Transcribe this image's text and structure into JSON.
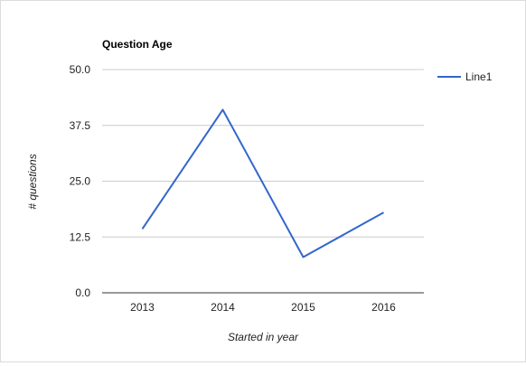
{
  "chart_data": {
    "type": "line",
    "title": "Question Age",
    "xlabel": "Started in year",
    "ylabel": "# questions",
    "categories": [
      "2013",
      "2014",
      "2015",
      "2016"
    ],
    "series": [
      {
        "name": "Line1",
        "values": [
          14.3,
          41,
          8,
          18
        ]
      }
    ],
    "ylim": [
      0,
      50
    ],
    "yticks": [
      "0.0",
      "12.5",
      "25.0",
      "37.5",
      "50.0"
    ],
    "grid": true,
    "legend_position": "right",
    "colors": {
      "series": "#3366cc",
      "grid": "#cccccc",
      "axis": "#333333",
      "text": "#222222"
    }
  }
}
